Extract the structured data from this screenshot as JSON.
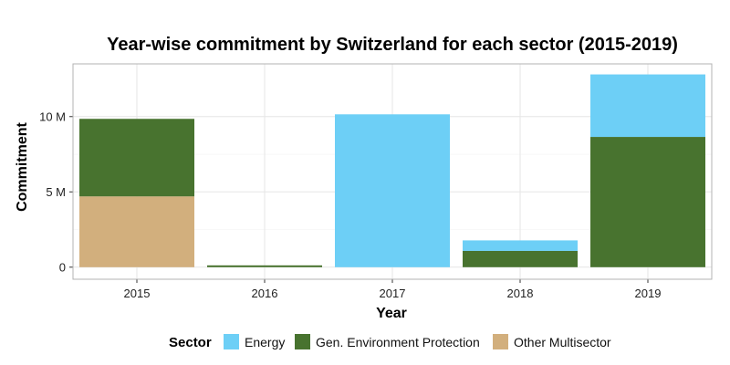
{
  "chart_data": {
    "type": "bar",
    "stacked": true,
    "title": "Year-wise commitment by Switzerland for each sector (2015-2019)",
    "xlabel": "Year",
    "ylabel": "Commitment",
    "categories": [
      "2015",
      "2016",
      "2017",
      "2018",
      "2019"
    ],
    "y_ticks": [
      {
        "value": 0,
        "label": "0"
      },
      {
        "value": 5000000,
        "label": "5 M"
      },
      {
        "value": 10000000,
        "label": "10 M"
      }
    ],
    "ylim": [
      -800000,
      13500000
    ],
    "grid": true,
    "legend": {
      "title": "Sector",
      "position": "bottom"
    },
    "series": [
      {
        "name": "Other Multisector",
        "color": "#D2AF7D",
        "values": [
          4700000,
          0,
          0,
          0,
          0
        ]
      },
      {
        "name": "Gen. Environment Protection",
        "color": "#48732F",
        "values": [
          5150000,
          120000,
          0,
          1080000,
          8650000
        ]
      },
      {
        "name": "Energy",
        "color": "#6DCFF6",
        "values": [
          0,
          0,
          10150000,
          700000,
          4150000
        ]
      }
    ],
    "legend_order": [
      "Energy",
      "Gen. Environment Protection",
      "Other Multisector"
    ]
  }
}
